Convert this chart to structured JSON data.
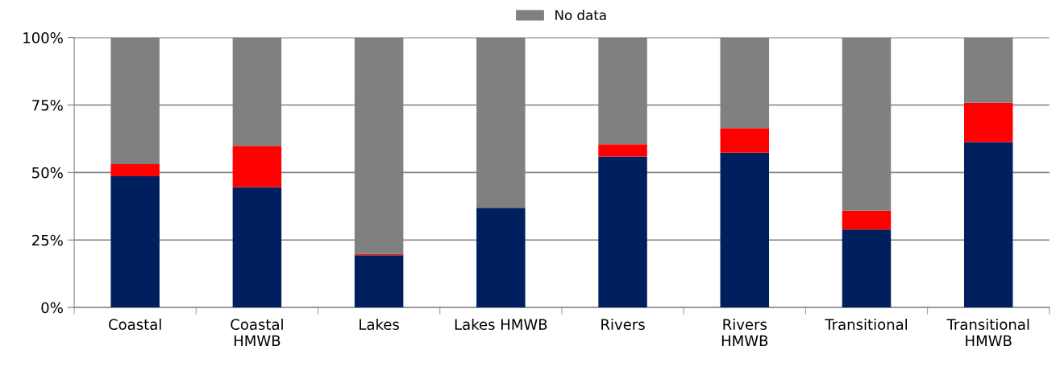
{
  "chart_data": {
    "type": "bar",
    "stacked": true,
    "categories": [
      "Coastal",
      "Coastal\nHMWB",
      "Lakes",
      "Lakes HMWB",
      "Rivers",
      "Rivers\nHMWB",
      "Transitional",
      "Transitional\nHMWB"
    ],
    "series": [
      {
        "color": "#001f5f",
        "values": [
          48.6,
          44.6,
          19.3,
          36.9,
          55.9,
          57.3,
          28.9,
          61.3
        ]
      },
      {
        "color": "#ff0000",
        "values": [
          4.5,
          15.3,
          0.5,
          0,
          4.6,
          9.1,
          7.0,
          14.5
        ]
      },
      {
        "name": "No data",
        "color": "#808080",
        "values": [
          46.9,
          40.1,
          80.2,
          63.1,
          39.5,
          33.6,
          64.1,
          24.2
        ]
      }
    ],
    "ylim": [
      0,
      100
    ],
    "yticks": [
      {
        "value": 0,
        "label": "0%"
      },
      {
        "value": 25,
        "label": "25%"
      },
      {
        "value": 50,
        "label": "50%"
      },
      {
        "value": 75,
        "label": "75%"
      },
      {
        "value": 100,
        "label": "100%"
      }
    ],
    "grid": "y",
    "legend": "top"
  }
}
